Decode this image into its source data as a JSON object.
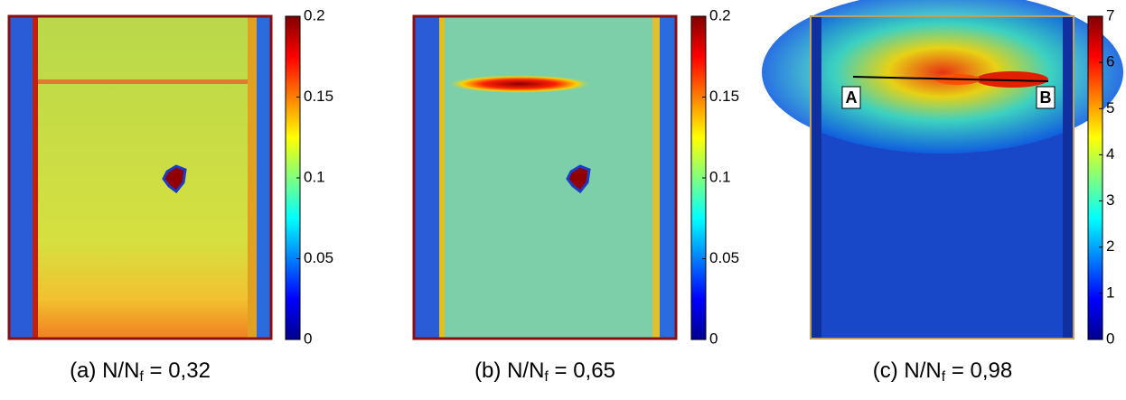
{
  "panels": [
    {
      "caption": {
        "prefix": "(a) N/N",
        "sub": "f",
        "suffix": " = 0,32"
      },
      "colorbar": {
        "lim": [
          0,
          0.2
        ],
        "ticks": [
          0,
          0.05,
          0.1,
          0.15,
          0.2
        ]
      }
    },
    {
      "caption": {
        "prefix": "(b) N/N",
        "sub": "f",
        "suffix": " = 0,65"
      },
      "colorbar": {
        "lim": [
          0,
          0.2
        ],
        "ticks": [
          0,
          0.05,
          0.1,
          0.15,
          0.2
        ]
      }
    },
    {
      "caption": {
        "prefix": "(c) N/N",
        "sub": "f",
        "suffix": " = 0,98"
      },
      "colorbar": {
        "lim": [
          0,
          7
        ],
        "ticks": [
          0,
          1,
          2,
          3,
          4,
          5,
          6,
          7
        ]
      },
      "labels": [
        "A",
        "B"
      ]
    }
  ]
}
